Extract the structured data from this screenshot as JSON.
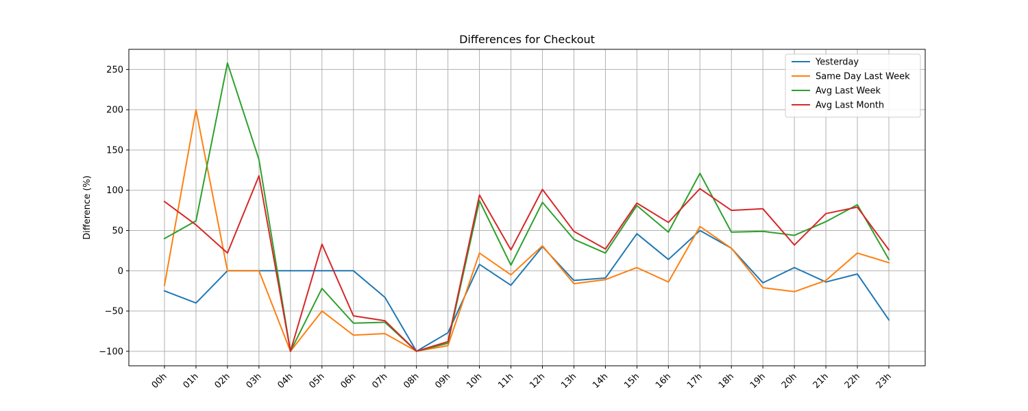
{
  "chart_data": {
    "type": "line",
    "title": "Differences for Checkout",
    "xlabel": "",
    "ylabel": "Difference (%)",
    "categories": [
      "00h",
      "01h",
      "02h",
      "03h",
      "04h",
      "05h",
      "06h",
      "07h",
      "08h",
      "09h",
      "10h",
      "11h",
      "12h",
      "13h",
      "14h",
      "15h",
      "16h",
      "17h",
      "18h",
      "19h",
      "20h",
      "21h",
      "22h",
      "23h"
    ],
    "ylim": [
      -118,
      275
    ],
    "yticks": [
      -100,
      -50,
      0,
      50,
      100,
      150,
      200,
      250
    ],
    "grid": true,
    "legend_position": "top-right",
    "series": [
      {
        "name": "Yesterday",
        "color": "#1f77b4",
        "values": [
          -25,
          -40,
          0,
          0,
          0,
          0,
          0,
          -33,
          -100,
          -77,
          8,
          -18,
          30,
          -12,
          -9,
          46,
          14,
          50,
          28,
          -15,
          4,
          -14,
          -4,
          -61
        ]
      },
      {
        "name": "Same Day Last Week",
        "color": "#ff7f0e",
        "values": [
          -18,
          200,
          0,
          0,
          -100,
          -50,
          -80,
          -78,
          -100,
          -93,
          22,
          -5,
          31,
          -16,
          -11,
          4,
          -14,
          55,
          28,
          -21,
          -26,
          -12,
          22,
          10
        ]
      },
      {
        "name": "Avg Last Week",
        "color": "#2ca02c",
        "values": [
          40,
          62,
          258,
          138,
          -100,
          -22,
          -65,
          -64,
          -100,
          -90,
          87,
          7,
          85,
          39,
          22,
          81,
          48,
          121,
          48,
          49,
          44,
          61,
          82,
          14
        ]
      },
      {
        "name": "Avg Last Month",
        "color": "#d62728",
        "values": [
          86,
          57,
          22,
          118,
          -100,
          33,
          -56,
          -62,
          -100,
          -88,
          94,
          26,
          101,
          49,
          27,
          84,
          60,
          102,
          75,
          77,
          32,
          71,
          79,
          26
        ]
      }
    ]
  }
}
